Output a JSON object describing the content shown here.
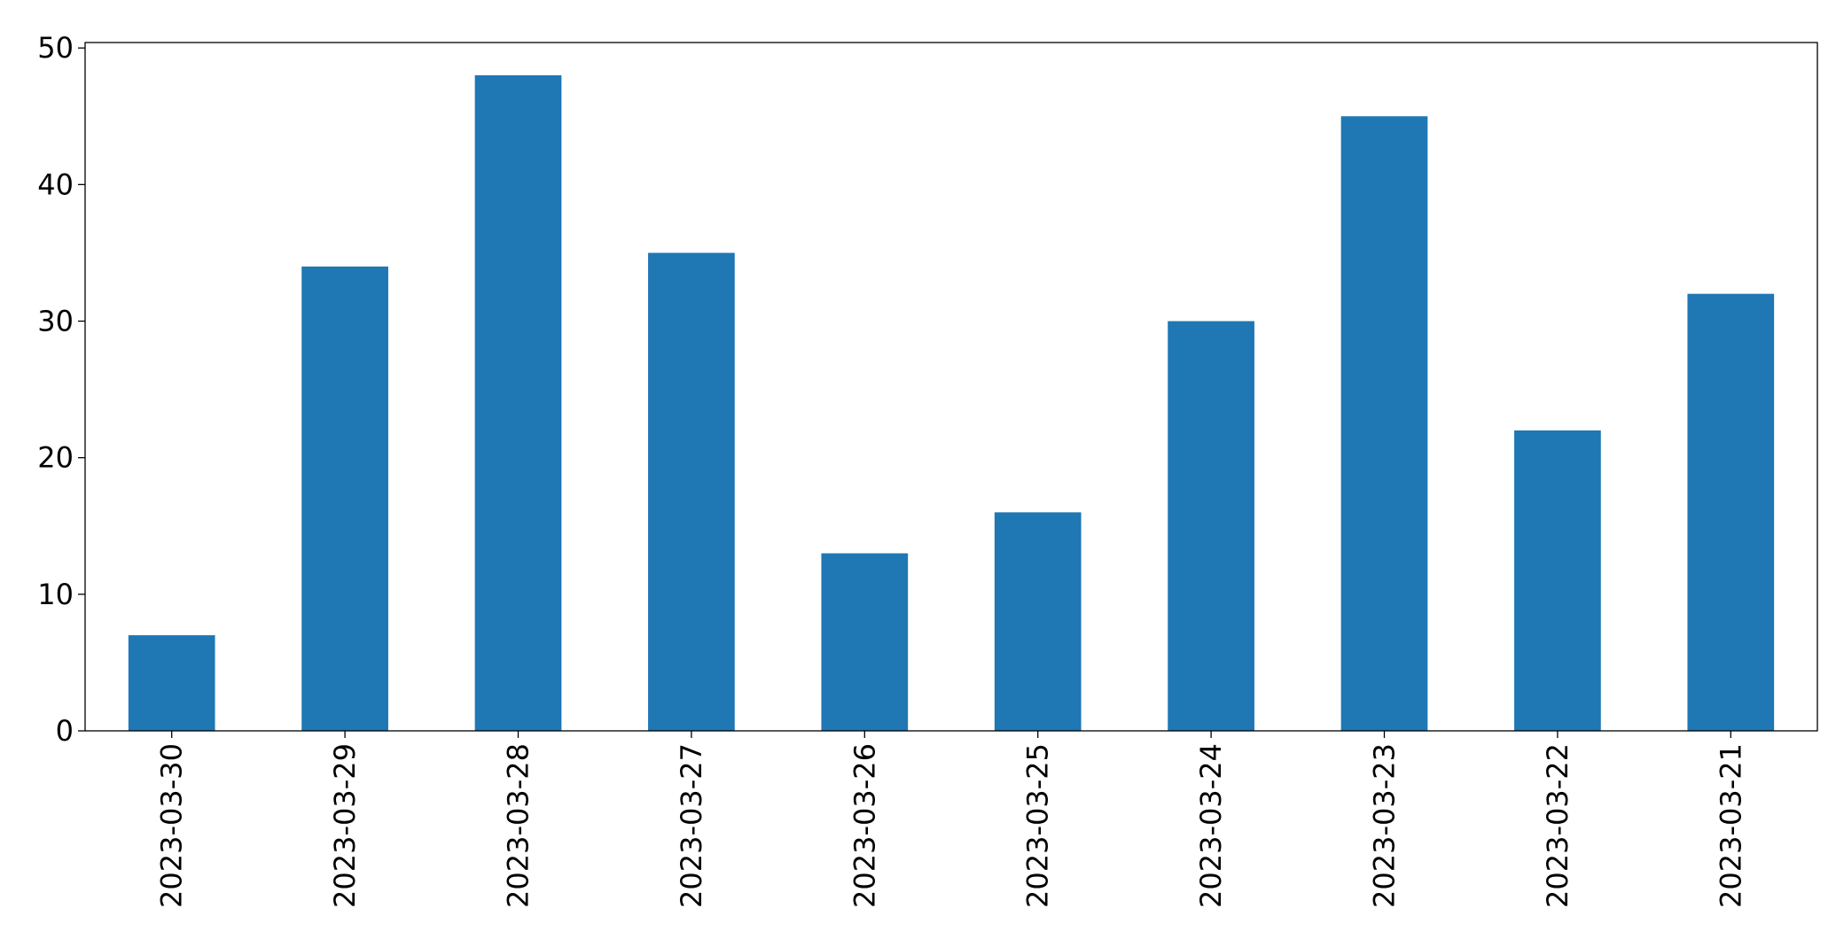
{
  "chart_data": {
    "type": "bar",
    "categories": [
      "2023-03-30",
      "2023-03-29",
      "2023-03-28",
      "2023-03-27",
      "2023-03-26",
      "2023-03-25",
      "2023-03-24",
      "2023-03-23",
      "2023-03-22",
      "2023-03-21"
    ],
    "values": [
      7,
      34,
      48,
      35,
      13,
      16,
      30,
      45,
      22,
      32
    ],
    "color": "#1f77b4",
    "ylim": [
      0,
      50.4
    ],
    "yticks": [
      0,
      10,
      20,
      30,
      40,
      50
    ],
    "grid": false
  }
}
